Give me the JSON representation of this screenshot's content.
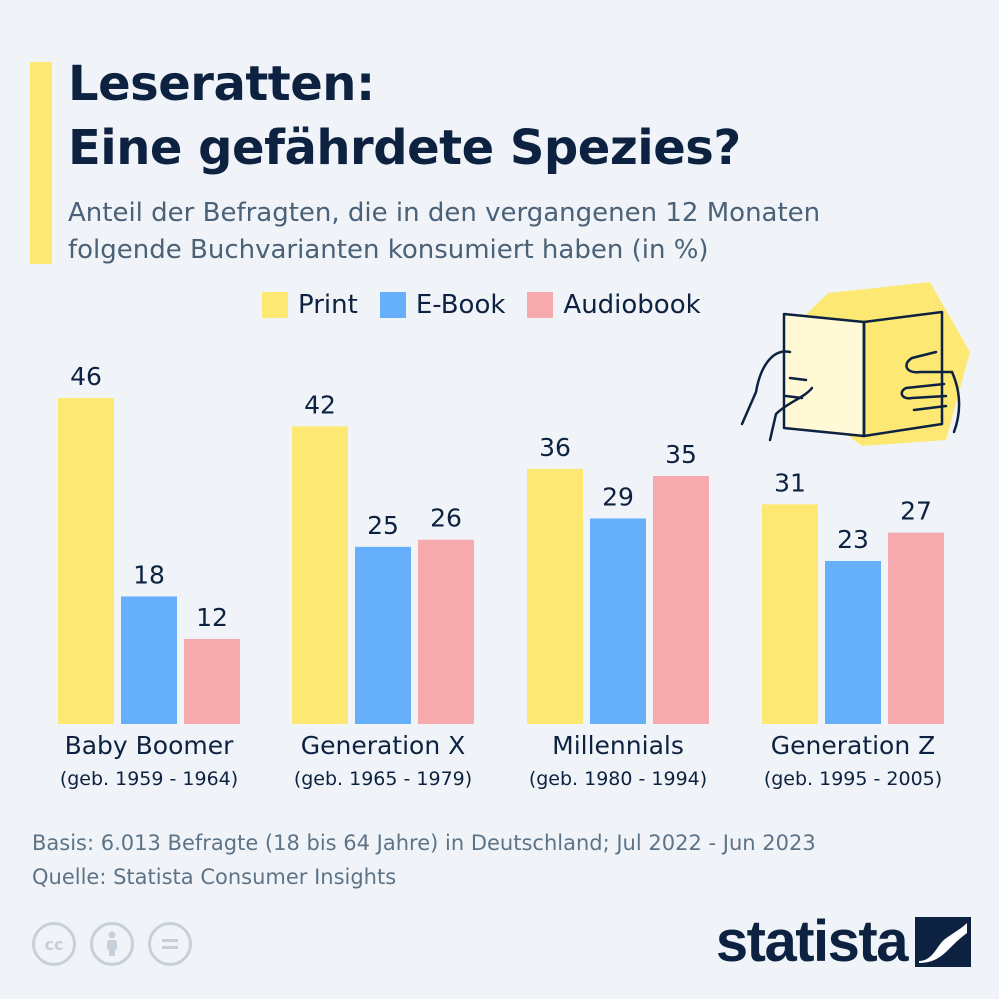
{
  "header": {
    "title_line1": "Leseratten:",
    "title_line2": "Eine gefährdete Spezies?",
    "subtitle_line1": "Anteil der Befragten, die in den vergangenen 12 Monaten",
    "subtitle_line2": "folgende Buchvarianten konsumiert haben (in %)"
  },
  "legend": [
    {
      "label": "Print",
      "color": "#fde874"
    },
    {
      "label": "E-Book",
      "color": "#66b0fb"
    },
    {
      "label": "Audiobook",
      "color": "#f6aaae"
    }
  ],
  "chart_data": {
    "type": "bar",
    "categories": [
      "Baby Boomer",
      "Generation X",
      "Millennials",
      "Generation Z"
    ],
    "category_sublabels": [
      "(geb. 1959 - 1964)",
      "(geb. 1965 - 1979)",
      "(geb. 1980 - 1994)",
      "(geb. 1995 - 2005)"
    ],
    "series": [
      {
        "name": "Print",
        "values": [
          46,
          42,
          36,
          31
        ],
        "color": "#fde874"
      },
      {
        "name": "E-Book",
        "values": [
          18,
          25,
          29,
          23
        ],
        "color": "#66b0fb"
      },
      {
        "name": "Audiobook",
        "values": [
          12,
          26,
          35,
          27
        ],
        "color": "#f6aaae"
      }
    ],
    "ylim": [
      0,
      46
    ],
    "grid": false,
    "legend_position": "top"
  },
  "footer": {
    "basis": "Basis: 6.013 Befragte (18 bis 64 Jahre) in Deutschland; Jul 2022 - Jun 2023",
    "source": "Quelle: Statista Consumer Insights",
    "license_icons": [
      "cc-icon",
      "by-icon",
      "nd-icon"
    ],
    "logo_text": "statista"
  },
  "illustration": {
    "icon": "open-book-hands-icon",
    "blob_color": "#fde874"
  }
}
